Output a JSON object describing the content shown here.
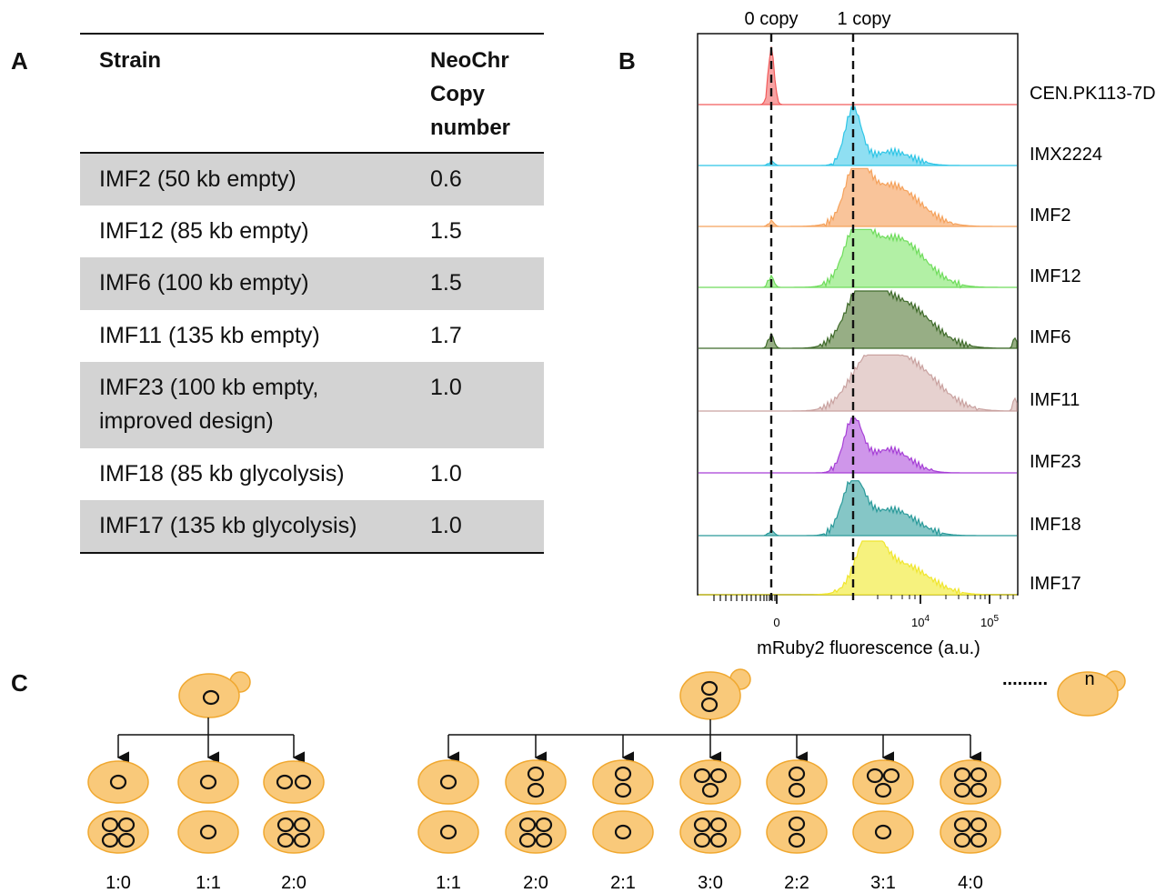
{
  "panels": {
    "a": "A",
    "b": "B",
    "c": "C"
  },
  "table": {
    "headers": {
      "strain": "Strain",
      "copy": [
        "NeoChr",
        "Copy",
        "number"
      ]
    },
    "rows": [
      {
        "strain": [
          "IMF2 (50 kb empty)"
        ],
        "copy": "0.6",
        "shaded": true
      },
      {
        "strain": [
          "IMF12 (85 kb empty)"
        ],
        "copy": "1.5",
        "shaded": false
      },
      {
        "strain": [
          "IMF6 (100 kb empty)"
        ],
        "copy": "1.5",
        "shaded": true
      },
      {
        "strain": [
          "IMF11 (135 kb empty)"
        ],
        "copy": "1.7",
        "shaded": false
      },
      {
        "strain": [
          "IMF23 (100 kb empty,",
          "improved design)"
        ],
        "copy": "1.0",
        "shaded": true
      },
      {
        "strain": [
          "IMF18 (85 kb  glycolysis)"
        ],
        "copy": "1.0",
        "shaded": false
      },
      {
        "strain": [
          "IMF17 (135 kb glycolysis)"
        ],
        "copy": "1.0",
        "shaded": true
      }
    ]
  },
  "chart_data": {
    "type": "area",
    "xlabel": "mRuby2 fluorescence (a.u.)",
    "x_scale": "biexponential",
    "xticks": [
      "0",
      "10^4",
      "10^5"
    ],
    "reference_lines": [
      {
        "label": "0 copy",
        "x": 0
      },
      {
        "label": "1 copy",
        "x": 1500
      }
    ],
    "series": [
      {
        "name": "CEN.PK113-7D",
        "color": "#f25c5c",
        "fill": "#f7a3a3"
      },
      {
        "name": "IMX2224",
        "color": "#2ec5e6",
        "fill": "#8fdff2"
      },
      {
        "name": "IMF2",
        "color": "#f5a25c",
        "fill": "#f9c49a"
      },
      {
        "name": "IMF12",
        "color": "#6fdc5c",
        "fill": "#b2f0a5"
      },
      {
        "name": "IMF6",
        "color": "#3f6b2a",
        "fill": "#97ae85"
      },
      {
        "name": "IMF11",
        "color": "#c9a2a0",
        "fill": "#e6d1cf"
      },
      {
        "name": "IMF23",
        "color": "#a63fd6",
        "fill": "#cf96ea"
      },
      {
        "name": "IMF18",
        "color": "#2a9a9a",
        "fill": "#85c6c6"
      },
      {
        "name": "IMF17",
        "color": "#f0e630",
        "fill": "#f6f27e"
      }
    ]
  },
  "diagram": {
    "cell_color": "#f9c97a",
    "cell_border": "#f0a830",
    "n_label": "n",
    "ellipsis": ".........",
    "group1_ratios": [
      "1:0",
      "1:1",
      "2:0"
    ],
    "group2_ratios": [
      "1:1",
      "2:0",
      "2:1",
      "3:0",
      "2:2",
      "3:1",
      "4:0"
    ]
  }
}
